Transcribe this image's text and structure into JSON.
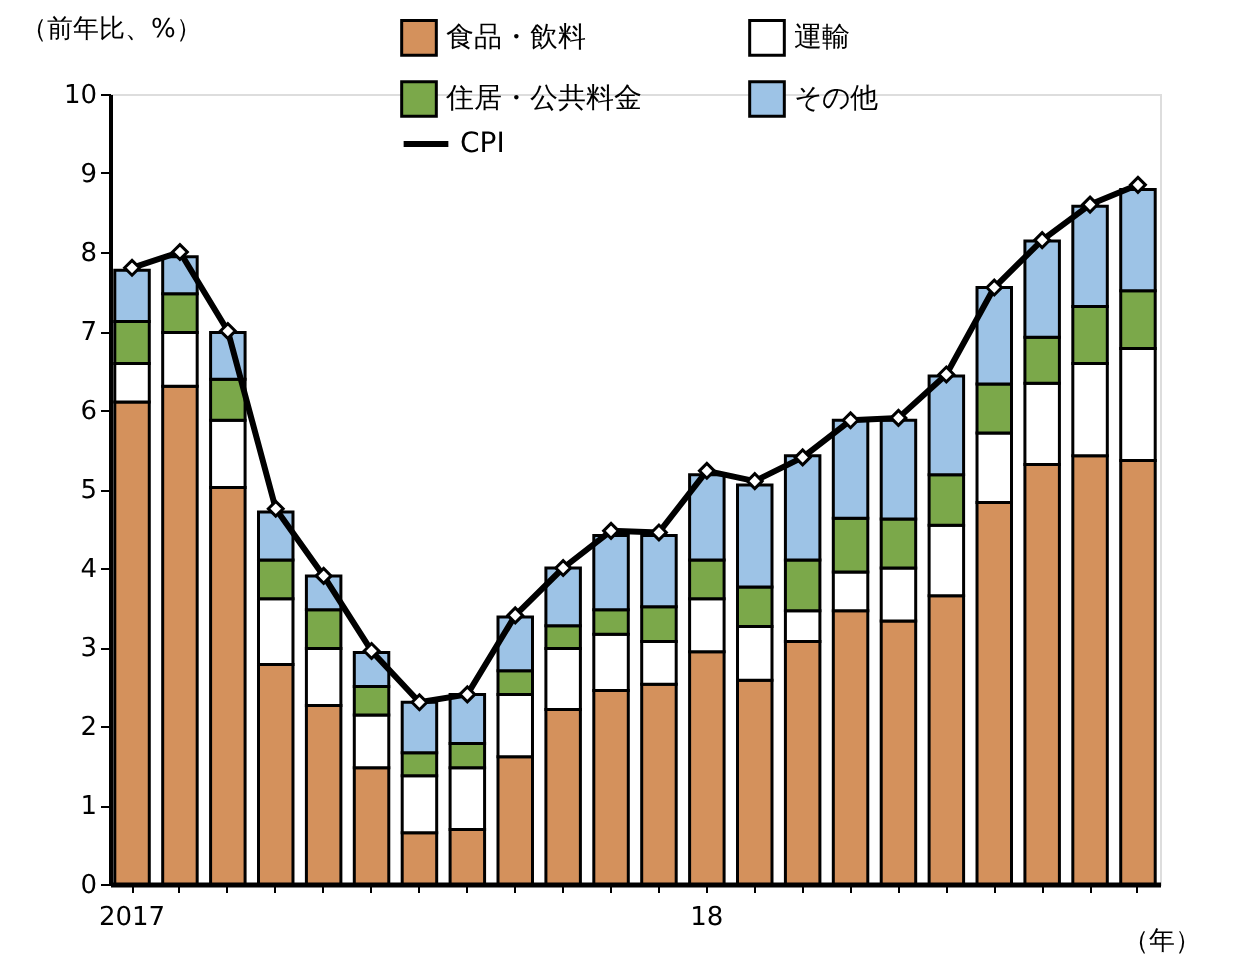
{
  "chart_data": {
    "type": "bar",
    "stacked": true,
    "ylabel": "（前年比、%）",
    "xlabel": "（年）",
    "categories": [
      "2017",
      null,
      null,
      null,
      null,
      null,
      null,
      null,
      null,
      null,
      null,
      null,
      "18",
      null,
      null,
      null,
      null,
      null,
      null,
      null,
      null,
      null
    ],
    "series": [
      {
        "name": "食品・飲料",
        "color": "#d4915c",
        "values": [
          6.1,
          6.3,
          5.02,
          2.78,
          2.26,
          1.47,
          0.65,
          0.69,
          1.61,
          2.21,
          2.45,
          2.53,
          2.94,
          2.58,
          3.07,
          3.46,
          3.33,
          3.65,
          4.83,
          5.31,
          5.42,
          5.36
        ]
      },
      {
        "name": "運輸",
        "color": "#ffffff",
        "values": [
          0.49,
          0.68,
          0.85,
          0.83,
          0.72,
          0.67,
          0.72,
          0.78,
          0.79,
          0.77,
          0.71,
          0.54,
          0.67,
          0.68,
          0.39,
          0.49,
          0.67,
          0.89,
          0.88,
          1.03,
          1.17,
          1.42
        ]
      },
      {
        "name": "住居・公共料金",
        "color": "#7ba84a",
        "values": [
          0.53,
          0.49,
          0.52,
          0.49,
          0.49,
          0.36,
          0.29,
          0.31,
          0.3,
          0.29,
          0.31,
          0.44,
          0.49,
          0.5,
          0.64,
          0.68,
          0.62,
          0.64,
          0.62,
          0.58,
          0.72,
          0.73
        ]
      },
      {
        "name": "その他",
        "color": "#9dc3e6",
        "values": [
          0.65,
          0.47,
          0.59,
          0.61,
          0.43,
          0.43,
          0.64,
          0.62,
          0.68,
          0.73,
          0.94,
          0.9,
          1.08,
          1.29,
          1.32,
          1.24,
          1.25,
          1.25,
          1.22,
          1.22,
          1.27,
          1.28
        ]
      },
      {
        "name": "CPI",
        "type": "line",
        "color": "#000000",
        "marker": "diamond",
        "values": [
          7.8,
          8.0,
          7.0,
          4.75,
          3.9,
          2.95,
          2.3,
          2.4,
          3.4,
          4.0,
          4.47,
          4.45,
          5.23,
          5.1,
          5.4,
          5.87,
          5.9,
          6.45,
          7.55,
          8.15,
          8.6,
          8.85
        ]
      }
    ],
    "ylim": [
      0,
      10
    ],
    "yticks": [
      0,
      1,
      2,
      3,
      4,
      5,
      6,
      7,
      8,
      9,
      10
    ],
    "grid": false,
    "legend": "top"
  }
}
